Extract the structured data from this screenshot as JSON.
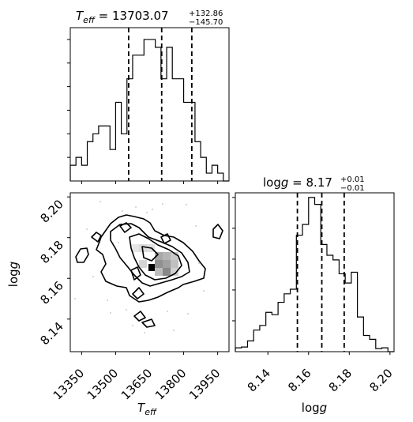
{
  "chart_data": [
    {
      "type": "histogram",
      "panel": "top-left",
      "title_main": "T",
      "title_sub": "eff",
      "title_value": " = 13703.07",
      "title_sup": "+132.86",
      "title_inf": "−145.70",
      "xlim": [
        13300,
        14000
      ],
      "bins_edges": [
        13300,
        13325,
        13350,
        13375,
        13400,
        13425,
        13450,
        13475,
        13500,
        13525,
        13550,
        13575,
        13600,
        13625,
        13650,
        13675,
        13700,
        13725,
        13750,
        13775,
        13800,
        13825,
        13850,
        13875,
        13900,
        13925,
        13950,
        13975,
        14000
      ],
      "counts": [
        2,
        3,
        2,
        5,
        6,
        7,
        7,
        4,
        10,
        6,
        13,
        16,
        16,
        18,
        18,
        17,
        13,
        17,
        13,
        13,
        10,
        10,
        5,
        3,
        1,
        2,
        1,
        0
      ],
      "quantiles": [
        13557.37,
        13703.07,
        13835.93
      ]
    },
    {
      "type": "histogram",
      "panel": "bottom-right",
      "title_main": "log",
      "title_ital": "g",
      "title_value": " = 8.17",
      "title_sup": "+0.01",
      "title_inf": "−0.01",
      "xlabel_main": "log",
      "xlabel_ital": "g",
      "xlim": [
        8.124,
        8.202
      ],
      "xticks": [
        "8.14",
        "8.16",
        "8.18",
        "8.20"
      ],
      "xtick_values": [
        8.14,
        8.16,
        8.18,
        8.2
      ],
      "bins_edges": [
        8.124,
        8.127,
        8.13,
        8.133,
        8.136,
        8.139,
        8.142,
        8.145,
        8.148,
        8.151,
        8.154,
        8.157,
        8.16,
        8.163,
        8.166,
        8.169,
        8.172,
        8.175,
        8.178,
        8.181,
        8.184,
        8.187,
        8.19,
        8.193,
        8.196,
        8.199,
        8.202
      ],
      "counts": [
        0.5,
        0.6,
        1.4,
        2.8,
        3.4,
        5.1,
        4.8,
        6.4,
        7.5,
        8.1,
        15.1,
        16.5,
        20.0,
        19.1,
        13.9,
        12.5,
        11.9,
        10.1,
        8.9,
        10.3,
        4.5,
        2.1,
        1.6,
        0.4,
        0.5,
        0
      ],
      "quantiles": [
        8.1545,
        8.1665,
        8.1775
      ]
    },
    {
      "type": "contour-2d",
      "panel": "bottom-left",
      "xlabel_main": "T",
      "xlabel_sub": "eff",
      "ylabel_main": "log",
      "ylabel_ital": "g",
      "xlim": [
        13300,
        14000
      ],
      "ylim": [
        8.124,
        8.202
      ],
      "xticks": [
        "13350",
        "13500",
        "13650",
        "13800",
        "13950"
      ],
      "xtick_values": [
        13350,
        13500,
        13650,
        13800,
        13950
      ],
      "yticks": [
        "8.14",
        "8.16",
        "8.18",
        "8.20"
      ],
      "ytick_values": [
        8.14,
        8.16,
        8.18,
        8.2
      ],
      "peak": [
        13650,
        8.163
      ]
    }
  ]
}
